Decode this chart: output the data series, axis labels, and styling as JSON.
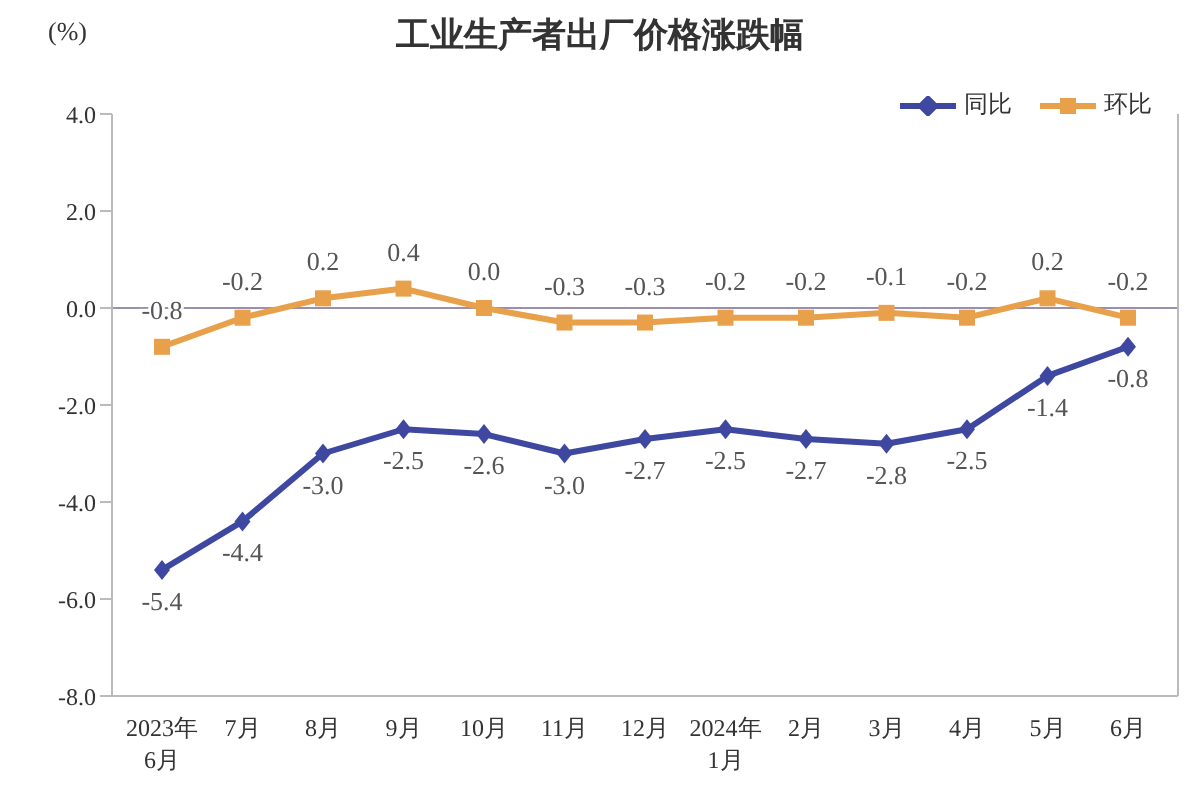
{
  "chart_data": {
    "type": "line",
    "title": "工业生产者出厂价格涨跌幅",
    "ylabel": "(%)",
    "categories": [
      "2023年\n6月",
      "7月",
      "8月",
      "9月",
      "10月",
      "11月",
      "12月",
      "2024年\n1月",
      "2月",
      "3月",
      "4月",
      "5月",
      "6月"
    ],
    "series": [
      {
        "name": "同比",
        "color": "#3f48a0",
        "marker": "diamond",
        "values": [
          -5.4,
          -4.4,
          -3.0,
          -2.5,
          -2.6,
          -3.0,
          -2.7,
          -2.5,
          -2.7,
          -2.8,
          -2.5,
          -1.4,
          -0.8
        ],
        "value_labels": [
          "-5.4",
          "-4.4",
          "-3.0",
          "-2.5",
          "-2.6",
          "-3.0",
          "-2.7",
          "-2.5",
          "-2.7",
          "-2.8",
          "-2.5",
          "-1.4",
          "-0.8"
        ]
      },
      {
        "name": "环比",
        "color": "#e8a04a",
        "marker": "square",
        "values": [
          -0.8,
          -0.2,
          0.2,
          0.4,
          0.0,
          -0.3,
          -0.3,
          -0.2,
          -0.2,
          -0.1,
          -0.2,
          0.2,
          -0.2
        ],
        "value_labels": [
          "-0.8",
          "-0.2",
          "0.2",
          "0.4",
          "0.0",
          "-0.3",
          "-0.3",
          "-0.2",
          "-0.2",
          "-0.1",
          "-0.2",
          "0.2",
          "-0.2"
        ]
      }
    ],
    "ylim": [
      -8,
      4
    ],
    "yticks": [
      {
        "value": 4,
        "label": "4.0"
      },
      {
        "value": 2,
        "label": "2.0"
      },
      {
        "value": 0,
        "label": "0.0"
      },
      {
        "value": -2,
        "label": "-2.0"
      },
      {
        "value": -4,
        "label": "-4.0"
      },
      {
        "value": -6,
        "label": "-6.0"
      },
      {
        "value": -8,
        "label": "-8.0"
      }
    ],
    "ref_lines": [
      {
        "axis": "y",
        "value": 0,
        "color": "#9a8fb0"
      }
    ],
    "grid": false,
    "legend": "top right",
    "line_style": "solid"
  }
}
